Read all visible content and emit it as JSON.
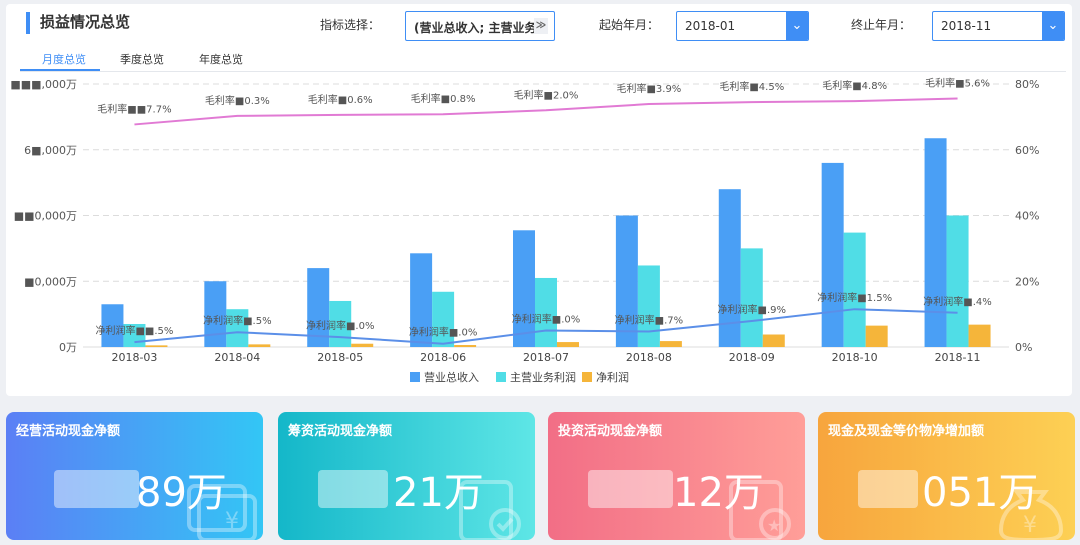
{
  "header": {
    "title": "损益情况总览",
    "indicator_label": "指标选择：",
    "indicator_value": "(营业总收入; 主营业务",
    "start_label": "起始年月：",
    "start_value": "2018-01",
    "end_label": "终止年月：",
    "end_value": "2018-11"
  },
  "tabs": [
    {
      "label": "月度总览"
    },
    {
      "label": "季度总览"
    },
    {
      "label": "年度总览"
    }
  ],
  "colors": {
    "accent": "#3f8ef5",
    "revenue": "#4a9ff5",
    "main_profit": "#50dde6",
    "net_profit": "#f5b53a",
    "gross_margin_line": "#e17ad4",
    "net_margin_line": "#5b8fe8"
  },
  "chart_data": {
    "type": "bar",
    "categories": [
      "2018-03",
      "2018-04",
      "2018-05",
      "2018-06",
      "2018-07",
      "2018-08",
      "2018-09",
      "2018-10",
      "2018-11"
    ],
    "y_left_ticks": [
      "0万",
      "■0,000万",
      "■■0,000万",
      "6■,000万",
      "■■■,000万"
    ],
    "y_right_ticks": [
      "0%",
      "20%",
      "40%",
      "60%",
      "80%"
    ],
    "ylim_left": [
      0,
      80
    ],
    "ylim_right": [
      0,
      80
    ],
    "series": [
      {
        "name": "营业总收入",
        "values": [
          13,
          20,
          24,
          28.5,
          35.5,
          40,
          48,
          56,
          63.5
        ]
      },
      {
        "name": "主营业务利润",
        "values": [
          7,
          11.5,
          14,
          16.8,
          21,
          24.8,
          30,
          34.8,
          40
        ]
      },
      {
        "name": "净利润",
        "values": [
          0.5,
          0.8,
          1,
          0.6,
          1.5,
          1.8,
          3.8,
          6.5,
          6.8
        ]
      }
    ],
    "lines": [
      {
        "name": "毛利率",
        "values": [
          67.7,
          70.3,
          70.6,
          70.8,
          72,
          73.9,
          74.5,
          74.8,
          75.6
        ]
      },
      {
        "name": "净利润率",
        "values": [
          1.5,
          4.5,
          3,
          1,
          5,
          4.7,
          7.9,
          11.5,
          10.4
        ]
      }
    ],
    "gross_margin_labels": [
      "毛利率■■7.7%",
      "毛利率■0.3%",
      "毛利率■0.6%",
      "毛利率■0.8%",
      "毛利率■2.0%",
      "毛利率■3.9%",
      "毛利率■4.5%",
      "毛利率■4.8%",
      "毛利率■5.6%"
    ],
    "net_margin_labels": [
      "净利润率■■.5%",
      "净利润率■.5%",
      "净利润率■.0%",
      "净利润率■.0%",
      "净利润率■.0%",
      "净利润率■.7%",
      "净利润率■.9%",
      "净利润率■1.5%",
      "净利润率■.4%"
    ],
    "legend": [
      "营业总收入",
      "主营业务利润",
      "净利润"
    ],
    "legend_position": "bottom",
    "grid": true
  },
  "cards": [
    {
      "title": "经营活动现金净额",
      "value": "89万",
      "gradient": [
        "#5b7ff5",
        "#33c6f5"
      ]
    },
    {
      "title": "筹资活动现金净额",
      "value": "21万",
      "gradient": [
        "#14b7c9",
        "#5ee6e6"
      ]
    },
    {
      "title": "投资活动现金净额",
      "value": "12万",
      "gradient": [
        "#f26e86",
        "#ff9e98"
      ]
    },
    {
      "title": "现金及现金等价物净增加额",
      "value": "051万",
      "gradient": [
        "#f7a53d",
        "#fdd054"
      ]
    }
  ]
}
